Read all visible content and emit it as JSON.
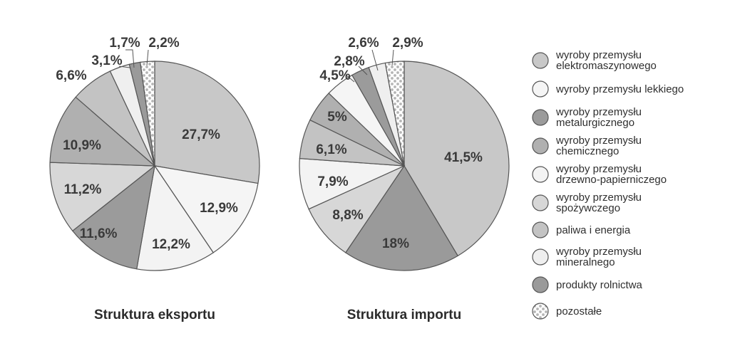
{
  "colors": {
    "wyroby_elektromaszynowe": "#c8c8c8",
    "wyroby_lekkie": "#f5f5f5",
    "wyroby_metalurgiczne": "#9b9b9b",
    "wyroby_chemiczne": "#b0b0b0",
    "wyroby_drzewno_papiernicze": "#f3f3f3",
    "wyroby_spozywcze": "#d7d7d7",
    "paliwa_i_energia": "#c3c3c3",
    "wyroby_mineralne": "#efefef",
    "produkty_rolnictwa": "#9a9a9a",
    "pozostale": "#ffffff",
    "pozostale_dots": "#b5b5b5",
    "stroke": "#555555"
  },
  "legend": [
    {
      "key": "wyroby_elektromaszynowe",
      "lines": [
        "wyroby przemysłu",
        "elektromaszynowego"
      ]
    },
    {
      "key": "wyroby_lekkie",
      "lines": [
        "wyroby przemysłu lekkiego"
      ]
    },
    {
      "key": "wyroby_metalurgiczne",
      "lines": [
        "wyroby przemysłu",
        "metalurgicznego"
      ]
    },
    {
      "key": "wyroby_chemiczne",
      "lines": [
        "wyroby przemysłu",
        "chemicznego"
      ]
    },
    {
      "key": "wyroby_drzewno_papiernicze",
      "lines": [
        "wyroby przemysłu",
        "drzewno-papierniczego"
      ]
    },
    {
      "key": "wyroby_spozywcze",
      "lines": [
        "wyroby przemysłu",
        "spożywczego"
      ]
    },
    {
      "key": "paliwa_i_energia",
      "lines": [
        "paliwa i energia"
      ]
    },
    {
      "key": "wyroby_mineralne",
      "lines": [
        "wyroby przemysłu",
        "mineralnego"
      ]
    },
    {
      "key": "produkty_rolnictwa",
      "lines": [
        "produkty rolnictwa"
      ]
    },
    {
      "key": "pozostale",
      "lines": [
        "pozostałe"
      ]
    }
  ],
  "chart_data": [
    {
      "type": "pie",
      "title": "Struktura eksportu",
      "slices": [
        {
          "key": "wyroby_elektromaszynowe",
          "value": 27.7,
          "label": "27,7%"
        },
        {
          "key": "wyroby_lekkie",
          "value": 12.9,
          "label": "12,9%"
        },
        {
          "key": "wyroby_drzewno_papiernicze",
          "value": 12.2,
          "label": "12,2%"
        },
        {
          "key": "wyroby_metalurgiczne",
          "value": 11.6,
          "label": "11,6%"
        },
        {
          "key": "wyroby_spozywcze",
          "value": 11.2,
          "label": "11,2%"
        },
        {
          "key": "wyroby_chemiczne",
          "value": 10.9,
          "label": "10,9%"
        },
        {
          "key": "paliwa_i_energia",
          "value": 6.6,
          "label": "6,6%"
        },
        {
          "key": "wyroby_mineralne",
          "value": 3.1,
          "label": "3,1%"
        },
        {
          "key": "produkty_rolnictwa",
          "value": 1.7,
          "label": "1,7%"
        },
        {
          "key": "pozostale",
          "value": 2.2,
          "label": "2,2%"
        }
      ]
    },
    {
      "type": "pie",
      "title": "Struktura importu",
      "slices": [
        {
          "key": "wyroby_elektromaszynowe",
          "value": 41.5,
          "label": "41,5%"
        },
        {
          "key": "produkty_rolnictwa",
          "value": 18,
          "label": "18%"
        },
        {
          "key": "wyroby_spozywcze",
          "value": 8.8,
          "label": "8,8%"
        },
        {
          "key": "wyroby_drzewno_papiernicze",
          "value": 7.9,
          "label": "7,9%"
        },
        {
          "key": "paliwa_i_energia",
          "value": 6.1,
          "label": "6,1%"
        },
        {
          "key": "wyroby_chemiczne",
          "value": 5,
          "label": "5%"
        },
        {
          "key": "wyroby_lekkie",
          "value": 4.5,
          "label": "4,5%"
        },
        {
          "key": "wyroby_metalurgiczne",
          "value": 2.8,
          "label": "2,8%"
        },
        {
          "key": "wyroby_mineralne",
          "value": 2.6,
          "label": "2,6%"
        },
        {
          "key": "pozostale",
          "value": 2.9,
          "label": "2,9%"
        }
      ]
    }
  ]
}
